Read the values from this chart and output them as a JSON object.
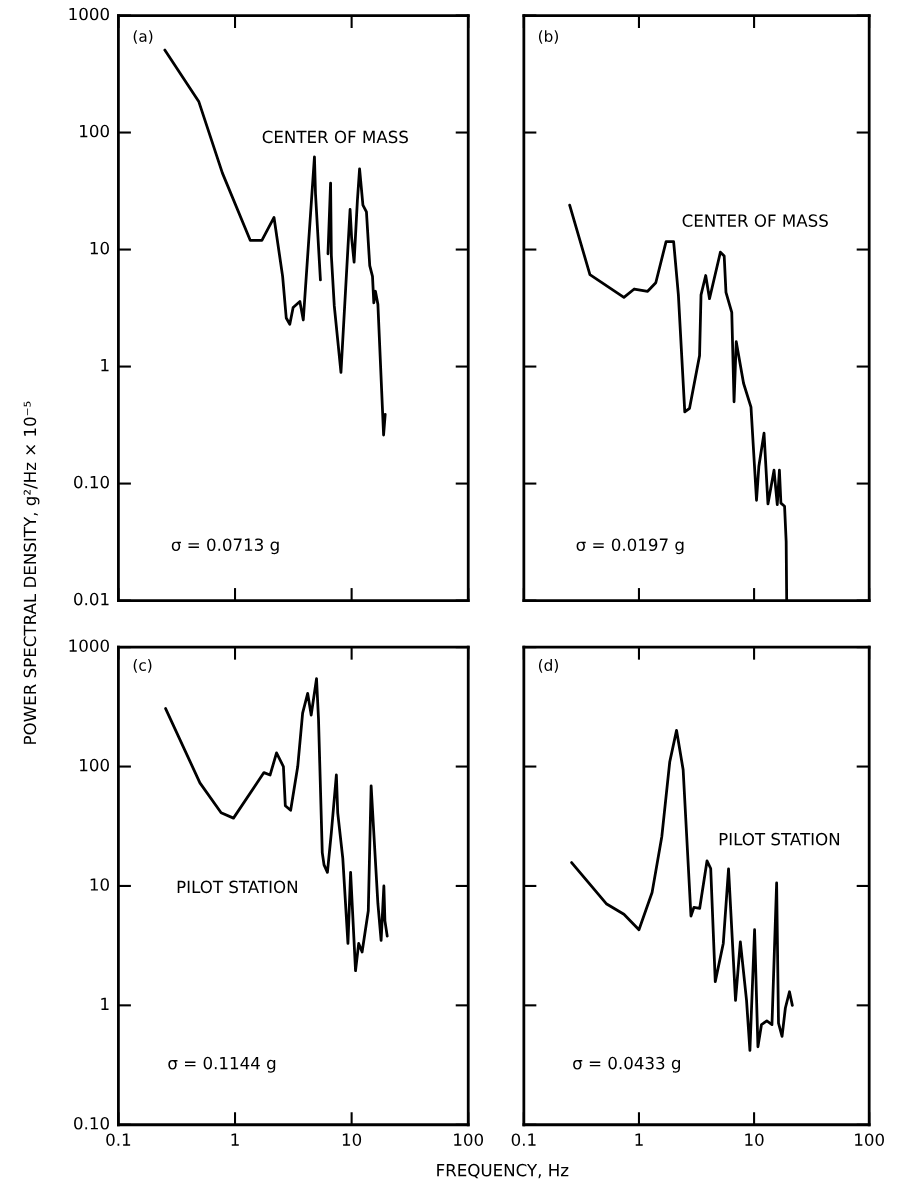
{
  "chart_data": [
    {
      "type": "line",
      "title": "(a)",
      "ylabel": "POWER SPECTRAL DENSITY, g²/Hz × 10⁻⁵",
      "log": "xy",
      "grid": false,
      "legend": false,
      "marker": "none",
      "line_style": "solid",
      "tick_labels": "y",
      "xlim": [
        0.1,
        100
      ],
      "xticks": [
        0.1,
        1,
        10,
        100
      ],
      "ylim": [
        0.01,
        1000
      ],
      "yticks": [
        1000,
        100,
        10,
        1,
        {
          "value": 0.1,
          "label": "0.10"
        },
        0.01
      ],
      "annotations": [
        "CENTER OF MASS",
        "σ = 0.0713 g"
      ],
      "series": [
        {
          "color": "#000000",
          "x": [
            0.25,
            0.49,
            0.78,
            1.35,
            1.7,
            2.16,
            2.56,
            2.75,
            2.95,
            3.15,
            3.6,
            3.85,
            4.8,
            4.9,
            5.4,
            5.8,
            6.27,
            6.6,
            6.7,
            7.1,
            8.1,
            9.4,
            9.7,
            10,
            10.5,
            11.2,
            11.7,
            12.5,
            13.4,
            14.3,
            15.1,
            15.5,
            16,
            16.8,
            18.8,
            19.4
          ],
          "values": [
            507,
            183,
            45,
            12,
            12,
            18.8,
            5.9,
            2.6,
            2.3,
            3.2,
            3.6,
            2.5,
            62,
            30,
            5.5,
            null,
            9.2,
            37,
            8.9,
            3.3,
            0.89,
            12.6,
            22,
            12.6,
            7.8,
            26,
            49,
            24,
            21,
            7.3,
            5.9,
            3.5,
            4.4,
            3.4,
            0.26,
            0.39
          ]
        }
      ]
    },
    {
      "type": "line",
      "title": "(b)",
      "log": "xy",
      "grid": false,
      "legend": false,
      "marker": "none",
      "line_style": "solid",
      "tick_labels": false,
      "xlim": [
        0.1,
        100
      ],
      "xticks": [
        0.1,
        1,
        10,
        100
      ],
      "ylim": [
        0.01,
        1000
      ],
      "yticks": [
        1000,
        100,
        10,
        1,
        0.1,
        0.01
      ],
      "annotations": [
        "CENTER OF MASS",
        "σ = 0.0197 g"
      ],
      "series": [
        {
          "color": "#000000",
          "x": [
            0.25,
            0.375,
            0.74,
            0.91,
            1.19,
            1.4,
            1.72,
            2.0,
            2.2,
            2.5,
            2.75,
            3.36,
            3.46,
            3.8,
            4.1,
            5.1,
            5.5,
            5.7,
            6.4,
            6.7,
            7.0,
            8.1,
            9.4,
            10.5,
            11.0,
            12.2,
            13.2,
            14.9,
            15.9,
            16.6,
            17.1,
            18.4,
            19,
            19.2
          ],
          "values": [
            24,
            6.1,
            3.9,
            4.6,
            4.4,
            5.2,
            11.7,
            11.7,
            4.1,
            0.41,
            0.44,
            1.24,
            4.1,
            6,
            3.8,
            9.5,
            8.8,
            4.3,
            2.9,
            0.5,
            1.63,
            0.72,
            0.45,
            0.072,
            0.14,
            0.27,
            0.067,
            0.13,
            0.066,
            0.13,
            0.068,
            0.064,
            0.032,
            0.01
          ]
        }
      ]
    },
    {
      "type": "line",
      "title": "(c)",
      "xlabel": "FREQUENCY, Hz",
      "log": "xy",
      "grid": false,
      "legend": false,
      "marker": "none",
      "line_style": "solid",
      "xlim": [
        0.1,
        100
      ],
      "xticks": [
        0.1,
        1,
        10,
        100
      ],
      "ylim": [
        0.1,
        1000
      ],
      "yticks": [
        1000,
        100,
        10,
        1,
        {
          "value": 0.1,
          "label": "0.10"
        }
      ],
      "annotations": [
        "PILOT STATION",
        "σ = 0.1144 g"
      ],
      "series": [
        {
          "color": "#000000",
          "x": [
            0.254,
            0.5,
            0.76,
            0.97,
            1.77,
            2.0,
            2.27,
            2.6,
            2.7,
            3.0,
            3.45,
            3.8,
            4.2,
            4.5,
            5.0,
            5.2,
            5.6,
            5.8,
            6.2,
            6.7,
            7.4,
            7.6,
            8.4,
            9.3,
            9.8,
            10.8,
            11.5,
            12.3,
            13.9,
            14.7,
            15.9,
            16.8,
            17.9,
            18.9,
            19.3,
            20.2
          ],
          "values": [
            306,
            73,
            41,
            37,
            89,
            85,
            130,
            100,
            47,
            43,
            100,
            280,
            410,
            270,
            545,
            250,
            19,
            15,
            13,
            28,
            85,
            41,
            17,
            3.3,
            13,
            1.95,
            3.3,
            2.8,
            6.2,
            69,
            18,
            7.1,
            3.5,
            10,
            5.1,
            3.8
          ]
        }
      ]
    },
    {
      "type": "line",
      "title": "(d)",
      "log": "xy",
      "grid": false,
      "legend": false,
      "marker": "none",
      "line_style": "solid",
      "tick_labels": "x",
      "xlim": [
        0.1,
        100
      ],
      "xticks": [
        0.1,
        1,
        10,
        100
      ],
      "ylim": [
        0.1,
        1000
      ],
      "yticks": [
        1000,
        100,
        10,
        1,
        0.1
      ],
      "annotations": [
        "PILOT STATION",
        "σ = 0.0433 g"
      ],
      "series": [
        {
          "color": "#000000",
          "x": [
            0.26,
            0.52,
            0.74,
            1.0,
            1.3,
            1.58,
            1.85,
            2.12,
            2.42,
            2.83,
            3.0,
            3.37,
            3.9,
            4.2,
            4.6,
            5.4,
            6.0,
            6.9,
            7.6,
            8.6,
            9.2,
            10.1,
            10.8,
            11.6,
            12.9,
            14.3,
            15.7,
            16.3,
            17.5,
            18.7,
            20.3,
            21.5
          ],
          "values": [
            15.7,
            7.1,
            5.8,
            4.3,
            8.8,
            26,
            109,
            201,
            94,
            5.6,
            6.6,
            6.5,
            16.2,
            14,
            1.58,
            3.3,
            13.9,
            1.1,
            3.4,
            1.1,
            0.42,
            4.3,
            0.45,
            0.69,
            0.74,
            0.69,
            10.6,
            0.71,
            0.55,
            0.95,
            1.3,
            1.0
          ]
        }
      ]
    }
  ]
}
